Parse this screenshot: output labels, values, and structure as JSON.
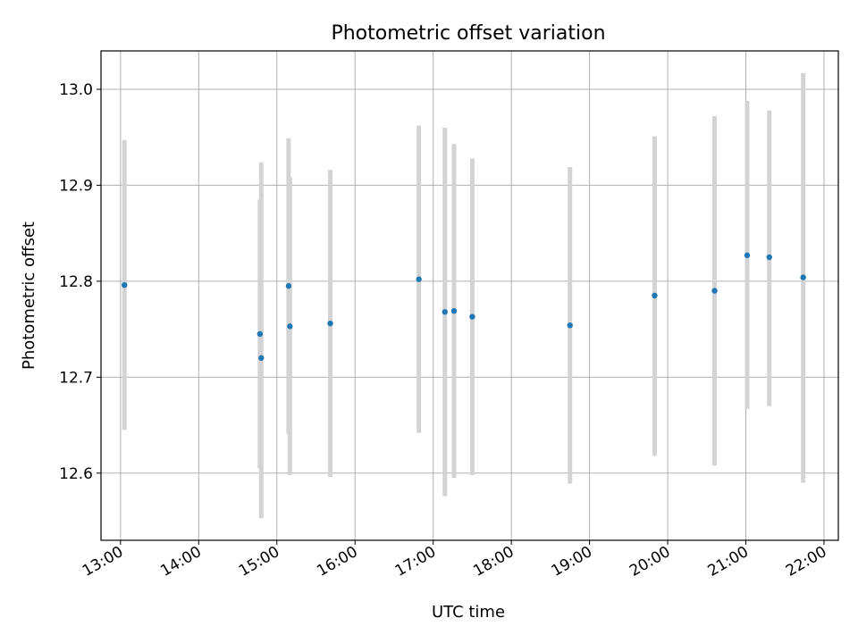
{
  "chart_data": {
    "type": "scatter",
    "title": "Photometric offset variation",
    "xlabel": "UTC time",
    "ylabel": "Photometric offset",
    "x_ticks": [
      "13:00",
      "14:00",
      "15:00",
      "16:00",
      "17:00",
      "18:00",
      "19:00",
      "20:00",
      "21:00",
      "22:00"
    ],
    "y_ticks": [
      "12.6",
      "12.7",
      "12.8",
      "12.9",
      "13.0"
    ],
    "xlim": [
      "12:45",
      "22:11"
    ],
    "ylim": [
      12.53,
      13.04
    ],
    "grid": true,
    "marker_color": "#1f77b4",
    "errorbar_color": "#d3d3d3",
    "points": [
      {
        "x": "13:03",
        "y": 12.796,
        "ylow": 12.645,
        "yhigh": 12.947
      },
      {
        "x": "14:47",
        "y": 12.745,
        "ylow": 12.605,
        "yhigh": 12.885
      },
      {
        "x": "14:48",
        "y": 12.72,
        "ylow": 12.553,
        "yhigh": 12.924
      },
      {
        "x": "15:09",
        "y": 12.795,
        "ylow": 12.641,
        "yhigh": 12.949
      },
      {
        "x": "15:10",
        "y": 12.753,
        "ylow": 12.598,
        "yhigh": 12.908
      },
      {
        "x": "15:41",
        "y": 12.756,
        "ylow": 12.596,
        "yhigh": 12.916
      },
      {
        "x": "16:49",
        "y": 12.802,
        "ylow": 12.642,
        "yhigh": 12.962
      },
      {
        "x": "17:09",
        "y": 12.768,
        "ylow": 12.576,
        "yhigh": 12.96
      },
      {
        "x": "17:16",
        "y": 12.769,
        "ylow": 12.595,
        "yhigh": 12.943
      },
      {
        "x": "17:30",
        "y": 12.763,
        "ylow": 12.598,
        "yhigh": 12.928
      },
      {
        "x": "18:45",
        "y": 12.754,
        "ylow": 12.589,
        "yhigh": 12.919
      },
      {
        "x": "19:50",
        "y": 12.785,
        "ylow": 12.618,
        "yhigh": 12.951
      },
      {
        "x": "20:36",
        "y": 12.79,
        "ylow": 12.608,
        "yhigh": 12.972
      },
      {
        "x": "21:01",
        "y": 12.827,
        "ylow": 12.667,
        "yhigh": 12.988
      },
      {
        "x": "21:18",
        "y": 12.825,
        "ylow": 12.67,
        "yhigh": 12.978
      },
      {
        "x": "21:44",
        "y": 12.804,
        "ylow": 12.59,
        "yhigh": 13.017
      }
    ]
  }
}
